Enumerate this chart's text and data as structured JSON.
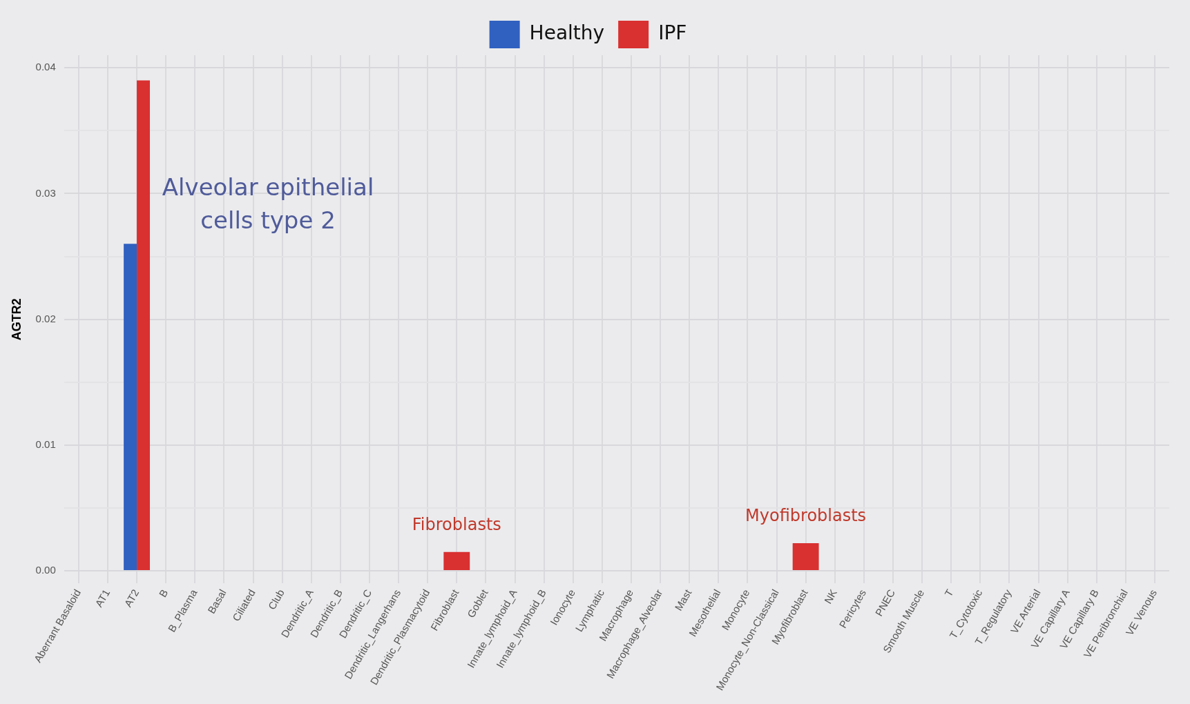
{
  "chart_data": {
    "type": "bar",
    "ylabel": "AGTR2",
    "categories": [
      "Aberrant Basaloid",
      "AT1",
      "AT2",
      "B",
      "B_Plasma",
      "Basal",
      "Ciliated",
      "Club",
      "Dendritic_A",
      "Dendritic_B",
      "Dendritic_C",
      "Dendritic_Langerhans",
      "Dendritic_Plasmacytoid",
      "Fibroblast",
      "Goblet",
      "Innate_lymphoid_A",
      "Innate_lymphoid_B",
      "Ionocyte",
      "Lymphatic",
      "Macrophage",
      "Macrophage_Alveolar",
      "Mast",
      "Mesothelial",
      "Monocyte",
      "Monocyte_Non-Classical",
      "Myofibroblast",
      "NK",
      "Pericytes",
      "PNEC",
      "Smooth Muscle",
      "T",
      "T_Cytotoxic",
      "T_Regulatory",
      "VE Arterial",
      "VE Capillary A",
      "VE Capillary B",
      "VE Peribronchial",
      "VE Venous"
    ],
    "series": [
      {
        "name": "Healthy",
        "color": "#3060c0",
        "values": [
          null,
          null,
          0.026,
          null,
          null,
          null,
          null,
          null,
          null,
          null,
          null,
          null,
          null,
          null,
          null,
          null,
          null,
          null,
          null,
          null,
          null,
          null,
          null,
          null,
          null,
          null,
          null,
          null,
          null,
          null,
          null,
          null,
          null,
          null,
          null,
          null,
          null,
          null
        ]
      },
      {
        "name": "IPF",
        "color": "#d93030",
        "values": [
          null,
          null,
          0.039,
          null,
          null,
          null,
          null,
          null,
          null,
          null,
          null,
          null,
          null,
          0.0015,
          null,
          null,
          null,
          null,
          null,
          null,
          null,
          null,
          null,
          null,
          null,
          0.0022,
          null,
          null,
          null,
          null,
          null,
          null,
          null,
          null,
          null,
          null,
          null,
          null
        ]
      }
    ],
    "ylim": [
      -0.001,
      0.041
    ],
    "yticks": [
      {
        "value": 0,
        "label": "0.00"
      },
      {
        "value": 0.005,
        "label": null
      },
      {
        "value": 0.01,
        "label": "0.01"
      },
      {
        "value": 0.015,
        "label": null
      },
      {
        "value": 0.02,
        "label": "0.02"
      },
      {
        "value": 0.025,
        "label": null
      },
      {
        "value": 0.03,
        "label": "0.03"
      },
      {
        "value": 0.035,
        "label": null
      },
      {
        "value": 0.04,
        "label": "0.04"
      }
    ],
    "grid": true,
    "legend": "top",
    "annotations": [
      {
        "text": "Alveolar epithelial cells type 2",
        "x": "AT2",
        "y": 0.029
      },
      {
        "text": "Fibroblasts",
        "x": "Fibroblast",
        "y": 0.0015
      },
      {
        "text": "Myofibroblasts",
        "x": "Myofibroblast",
        "y": 0.0022
      }
    ]
  }
}
